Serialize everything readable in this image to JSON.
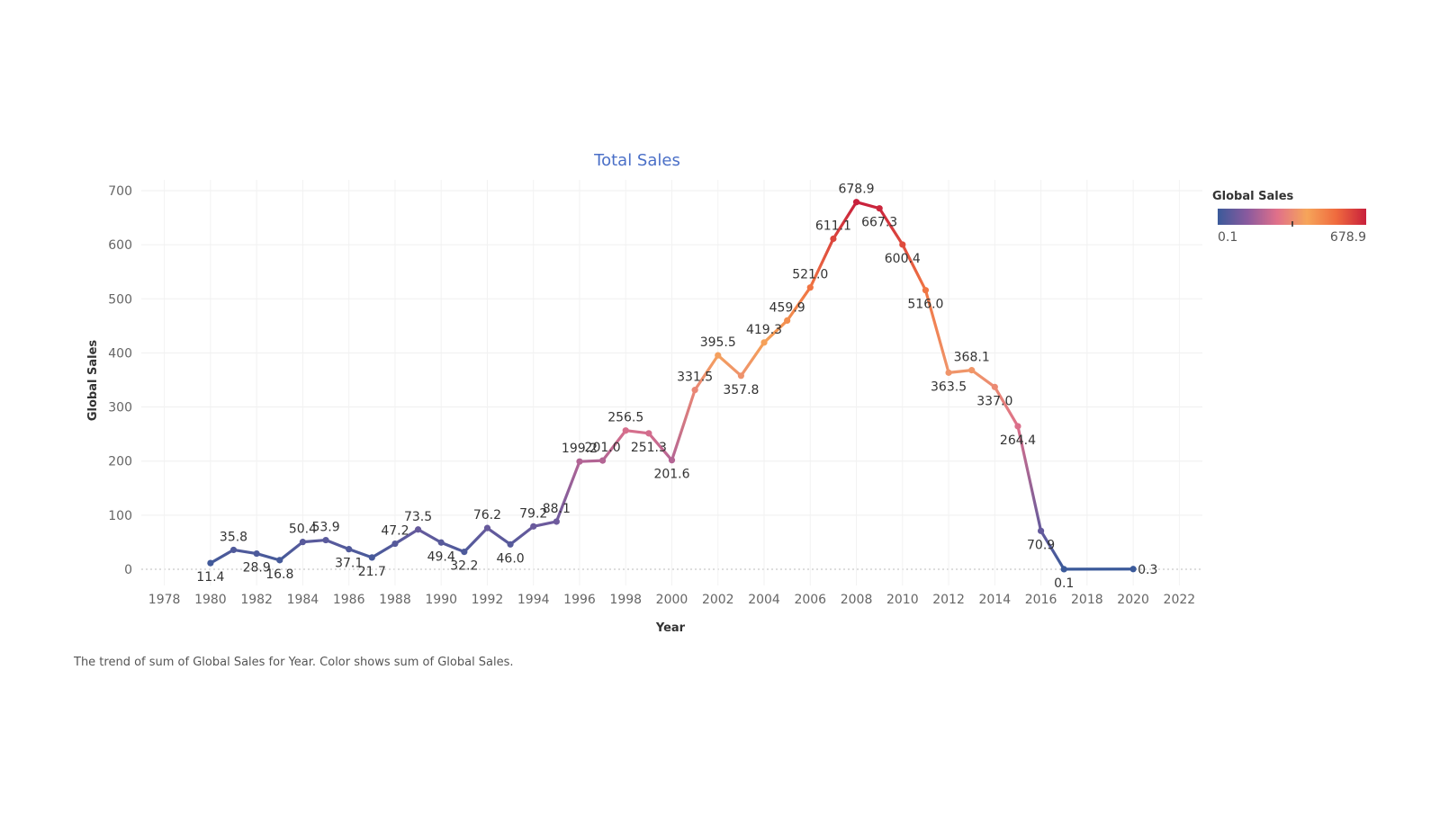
{
  "chart_data": {
    "type": "line",
    "title": "Total Sales",
    "xlabel": "Year",
    "ylabel": "Global Sales",
    "xlim": [
      1977,
      2023
    ],
    "ylim": [
      -30,
      720
    ],
    "x_ticks": [
      "1978",
      "1980",
      "1982",
      "1984",
      "1986",
      "1988",
      "1990",
      "1992",
      "1994",
      "1996",
      "1998",
      "2000",
      "2002",
      "2004",
      "2006",
      "2008",
      "2010",
      "2012",
      "2014",
      "2016",
      "2018",
      "2020",
      "2022"
    ],
    "y_ticks": [
      "0",
      "100",
      "200",
      "300",
      "400",
      "500",
      "600",
      "700"
    ],
    "grid": true,
    "series": [
      {
        "x": [
          1980,
          1981,
          1982,
          1983,
          1984,
          1985,
          1986,
          1987,
          1988,
          1989,
          1990,
          1991,
          1992,
          1993,
          1994,
          1995,
          1996,
          1997,
          1998,
          1999,
          2000,
          2001,
          2002,
          2003,
          2004,
          2005,
          2006,
          2007,
          2008,
          2009,
          2010,
          2011,
          2012,
          2013,
          2014,
          2015,
          2016,
          2017,
          2020
        ],
        "y": [
          11.4,
          35.8,
          28.9,
          16.8,
          50.4,
          53.9,
          37.1,
          21.7,
          47.2,
          73.5,
          49.4,
          32.2,
          76.2,
          46.0,
          79.2,
          88.1,
          199.2,
          201.0,
          256.5,
          251.3,
          201.6,
          331.5,
          395.5,
          357.8,
          419.3,
          459.9,
          521.0,
          611.1,
          678.9,
          667.3,
          600.4,
          516.0,
          363.5,
          368.1,
          337.0,
          264.4,
          70.9,
          0.1,
          0.3
        ],
        "labels": [
          "11.4",
          "35.8",
          "28.9",
          "16.8",
          "50.4",
          "53.9",
          "37.1",
          "21.7",
          "47.2",
          "73.5",
          "49.4",
          "32.2",
          "76.2",
          "46.0",
          "79.2",
          "88.1",
          "199.2",
          "201.0",
          "256.5",
          "251.3",
          "201.6",
          "331.5",
          "395.5",
          "357.8",
          "419.3",
          "459.9",
          "521.0",
          "611.1",
          "678.9",
          "667.3",
          "600.4",
          "516.0",
          "363.5",
          "368.1",
          "337.0",
          "264.4",
          "70.9",
          "0.1",
          "0.3"
        ]
      }
    ],
    "color_legend": {
      "title": "Global Sales",
      "min_label": "0.1",
      "max_label": "678.9",
      "stops": [
        "#3b5a9a",
        "#8a5a9e",
        "#e0708a",
        "#f6a55a",
        "#ef6a3e",
        "#c8203c"
      ]
    },
    "caption": "The trend of sum of Global Sales for Year.  Color shows sum of Global Sales."
  }
}
